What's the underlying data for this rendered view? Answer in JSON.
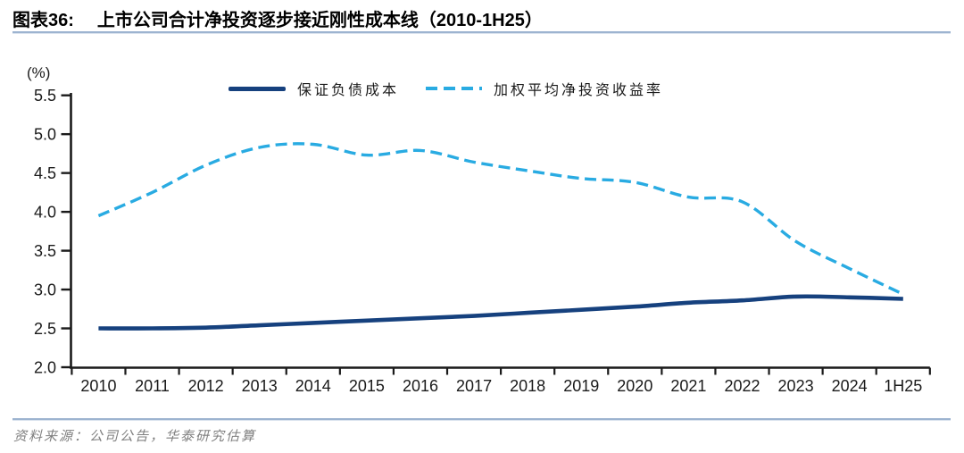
{
  "header": {
    "figure_label": "图表36:",
    "title": "上市公司合计净投资逐步接近刚性成本线（2010-1H25）"
  },
  "footer": {
    "source_text": "资料来源：公司公告，华泰研究估算"
  },
  "colors": {
    "rule": "#9db4d0",
    "axis": "#1a1a1a",
    "cost_line": "#16417e",
    "yield_line": "#29abe2",
    "source_text": "#808080"
  },
  "chart_data": {
    "type": "line",
    "title": "上市公司合计净投资逐步接近刚性成本线（2010-1H25）",
    "unit_label": "(%)",
    "categories": [
      "2010",
      "2011",
      "2012",
      "2013",
      "2014",
      "2015",
      "2016",
      "2017",
      "2018",
      "2019",
      "2020",
      "2021",
      "2022",
      "2023",
      "2024",
      "1H25"
    ],
    "series": [
      {
        "name": "保证负债成本",
        "line_style": "solid",
        "color": "#16417e",
        "values": [
          2.5,
          2.5,
          2.51,
          2.54,
          2.57,
          2.6,
          2.63,
          2.66,
          2.7,
          2.74,
          2.78,
          2.83,
          2.86,
          2.91,
          2.9,
          2.88
        ]
      },
      {
        "name": "加权平均净投资收益率",
        "line_style": "dashed",
        "color": "#29abe2",
        "values": [
          3.95,
          4.25,
          4.6,
          4.83,
          4.87,
          4.73,
          4.79,
          4.64,
          4.53,
          4.43,
          4.38,
          4.19,
          4.13,
          3.62,
          3.27,
          2.94
        ]
      }
    ],
    "ylim": [
      2.0,
      5.5
    ],
    "ytick_step": 0.5,
    "grid": false,
    "legend_position": "top-center"
  }
}
